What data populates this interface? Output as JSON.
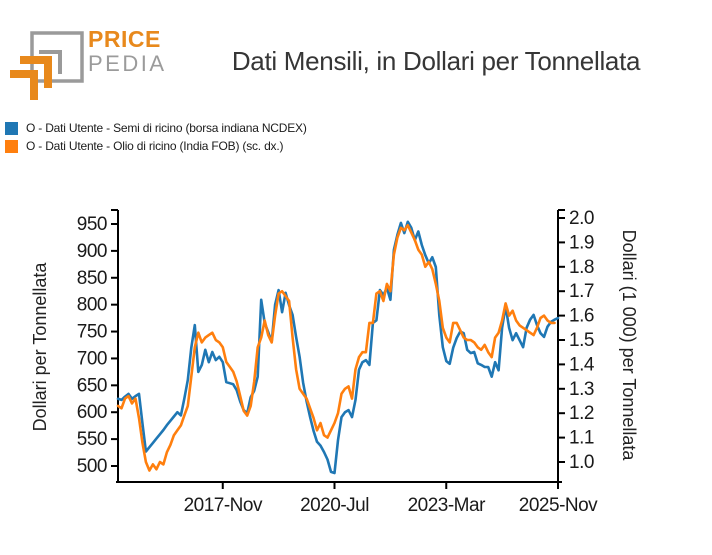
{
  "header": {
    "logo": {
      "line1": "PRICE",
      "line2": "PEDIA"
    },
    "title": "Dati Mensili, in Dollari per Tonnellata"
  },
  "legend": {
    "items": [
      {
        "label": "O - Dati Utente - Semi di ricino (borsa indiana NCDEX)",
        "color": "#1f77b4"
      },
      {
        "label": "O - Dati Utente - Olio di ricino (India FOB) (sc. dx.)",
        "color": "#ff7f0e"
      }
    ]
  },
  "chart_data": {
    "type": "line",
    "title": "Dati Mensili, in Dollari per Tonnellata",
    "x_unit": "month",
    "x_start": "2015-05",
    "x_end": "2025-11",
    "x_ticks": [
      {
        "index": 30,
        "label": "2017-Nov"
      },
      {
        "index": 62,
        "label": "2020-Jul"
      },
      {
        "index": 94,
        "label": "2023-Mar"
      },
      {
        "index": 126,
        "label": "2025-Nov"
      }
    ],
    "left_axis": {
      "label": "Dollari per Tonnellata",
      "min": 475,
      "max": 975,
      "ticks": [
        500,
        550,
        600,
        650,
        700,
        750,
        800,
        850,
        900,
        950
      ]
    },
    "right_axis": {
      "label": "Dollari (1 000) per Tonnellata",
      "min": 0.95,
      "max": 2.03,
      "ticks": [
        1.0,
        1.1,
        1.2,
        1.3,
        1.4,
        1.5,
        1.6,
        1.7,
        1.8,
        1.9,
        2.0
      ]
    },
    "grid": false,
    "legend_position": "top-left",
    "series": [
      {
        "name": "O - Dati Utente - Semi di ricino (borsa indiana NCDEX)",
        "axis": "left",
        "color": "#1f77b4",
        "values": [
          625,
          623,
          629,
          634,
          625,
          630,
          634,
          580,
          527,
          535,
          543,
          551,
          559,
          567,
          576,
          584,
          592,
          600,
          594,
          625,
          660,
          720,
          762,
          675,
          688,
          716,
          693,
          712,
          697,
          703,
          693,
          656,
          654,
          652,
          641,
          620,
          604,
          598,
          628,
          640,
          666,
          809,
          766,
          749,
          731,
          800,
          827,
          786,
          822,
          799,
          781,
          740,
          703,
          655,
          620,
          591,
          565,
          545,
          538,
          526,
          512,
          489,
          487,
          548,
          591,
          600,
          604,
          591,
          623,
          679,
          693,
          697,
          688,
          766,
          771,
          827,
          818,
          831,
          809,
          902,
          930,
          952,
          933,
          954,
          943,
          920,
          936,
          911,
          892,
          877,
          888,
          870,
          780,
          721,
          695,
          690,
          720,
          738,
          750,
          747,
          716,
          710,
          712,
          691,
          688,
          684,
          684,
          666,
          693,
          678,
          757,
          797,
          757,
          734,
          747,
          734,
          721,
          757,
          772,
          781,
          762,
          747,
          740,
          759,
          768,
          772,
          775
        ]
      },
      {
        "name": "O - Dati Utente - Olio di ricino (India FOB) (sc. dx.)",
        "axis": "right",
        "color": "#ff7f0e",
        "values": [
          1.23,
          1.22,
          1.26,
          1.27,
          1.24,
          1.26,
          1.18,
          1.08,
          1.0,
          0.965,
          0.99,
          0.97,
          1.0,
          0.99,
          1.04,
          1.07,
          1.11,
          1.13,
          1.15,
          1.19,
          1.23,
          1.35,
          1.47,
          1.53,
          1.49,
          1.51,
          1.52,
          1.53,
          1.5,
          1.49,
          1.47,
          1.41,
          1.39,
          1.37,
          1.33,
          1.27,
          1.21,
          1.19,
          1.23,
          1.33,
          1.47,
          1.51,
          1.58,
          1.52,
          1.49,
          1.6,
          1.69,
          1.7,
          1.68,
          1.66,
          1.51,
          1.38,
          1.3,
          1.28,
          1.26,
          1.22,
          1.18,
          1.13,
          1.16,
          1.11,
          1.1,
          1.13,
          1.16,
          1.2,
          1.28,
          1.3,
          1.31,
          1.26,
          1.38,
          1.43,
          1.45,
          1.45,
          1.57,
          1.57,
          1.69,
          1.7,
          1.66,
          1.73,
          1.7,
          1.85,
          1.92,
          1.96,
          1.95,
          1.97,
          1.94,
          1.91,
          1.87,
          1.85,
          1.8,
          1.82,
          1.79,
          1.73,
          1.66,
          1.55,
          1.51,
          1.49,
          1.57,
          1.57,
          1.54,
          1.51,
          1.5,
          1.5,
          1.49,
          1.47,
          1.46,
          1.48,
          1.45,
          1.43,
          1.51,
          1.53,
          1.58,
          1.65,
          1.6,
          1.62,
          1.58,
          1.56,
          1.55,
          1.54,
          1.53,
          1.52,
          1.55,
          1.59,
          1.6,
          1.58,
          1.57,
          1.57,
          null
        ]
      }
    ]
  }
}
